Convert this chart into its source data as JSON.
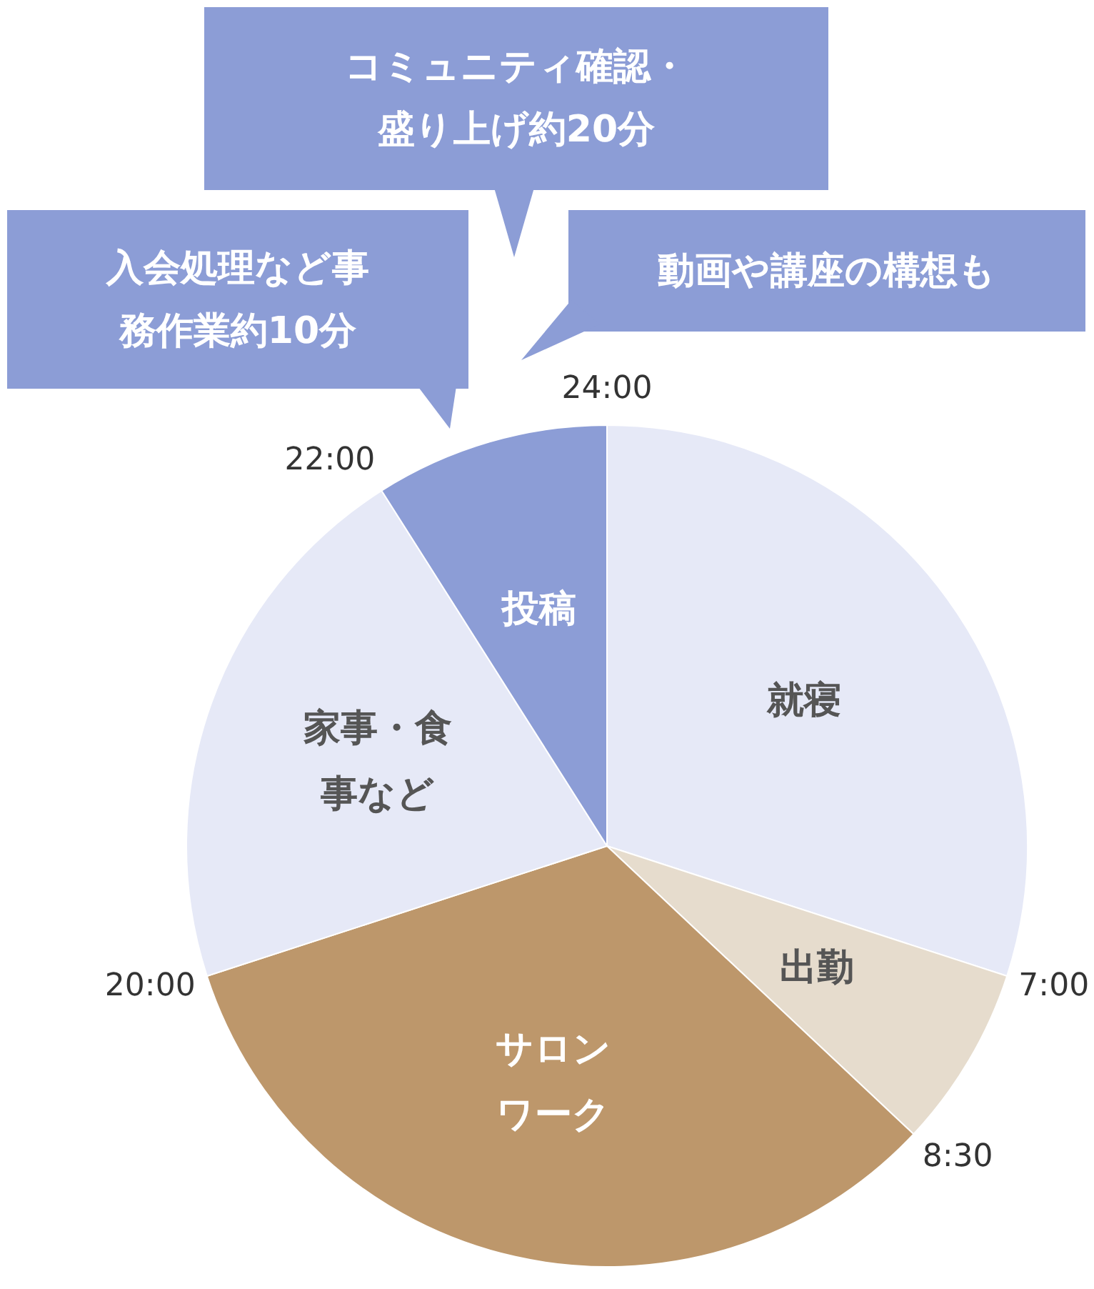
{
  "chart_data": {
    "type": "pie",
    "categories": [
      "就寝",
      "出勤",
      "サロンワーク",
      "家事・食事など",
      "投稿"
    ],
    "values": [
      30,
      7,
      33,
      21,
      9
    ],
    "colors": [
      "#e6e9f7",
      "#e6dccd",
      "#bd976b",
      "#e6e9f7",
      "#8c9dd6"
    ],
    "legend": false,
    "annotations": [
      "コミュニティ確認・盛り上げ約20分",
      "入会処理など事務作業約10分",
      "動画や講座の構想も",
      "24:00",
      "7:00",
      "8:30",
      "20:00",
      "22:00"
    ]
  }
}
